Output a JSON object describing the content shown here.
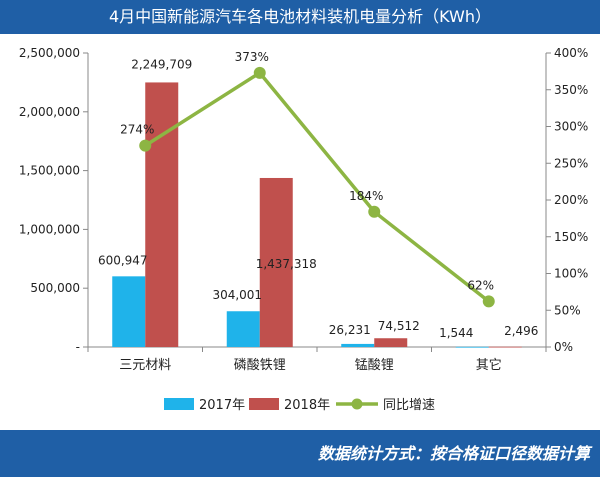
{
  "header": {
    "title": "4月中国新能源汽车各电池材料装机电量分析（KWh）"
  },
  "footer": {
    "note": "数据统计方式：按合格证口径数据计算"
  },
  "colors": {
    "s2017": "#1fb3ea",
    "s2018": "#c0504d",
    "yoy": "#8db543",
    "frame": "#1f5fa6"
  },
  "chart_data": {
    "type": "bar",
    "categories": [
      "三元材料",
      "磷酸铁锂",
      "锰酸锂",
      "其它"
    ],
    "series": [
      {
        "name": "2017年",
        "type": "bar",
        "axis": "left",
        "values": [
          600947,
          304001,
          26231,
          1544
        ],
        "labels": [
          "600,947",
          "304,001",
          "26,231",
          "1,544"
        ]
      },
      {
        "name": "2018年",
        "type": "bar",
        "axis": "left",
        "values": [
          2249709,
          1437318,
          74512,
          2496
        ],
        "labels": [
          "2,249,709",
          "1,437,318",
          "74,512",
          "2,496"
        ]
      },
      {
        "name": "同比增速",
        "type": "line",
        "axis": "right",
        "values": [
          274,
          373,
          184,
          62
        ],
        "labels": [
          "274%",
          "373%",
          "184%",
          "62%"
        ]
      }
    ],
    "y_left": {
      "min": 0,
      "max": 2500000,
      "ticks": [
        0,
        500000,
        1000000,
        1500000,
        2000000,
        2500000
      ],
      "tick_labels": [
        "-",
        "500,000",
        "1,000,000",
        "1,500,000",
        "2,000,000",
        "2,500,000"
      ]
    },
    "y_right": {
      "min": 0,
      "max": 400,
      "ticks": [
        0,
        50,
        100,
        150,
        200,
        250,
        300,
        350,
        400
      ],
      "tick_labels": [
        "0%",
        "50%",
        "100%",
        "150%",
        "200%",
        "250%",
        "300%",
        "350%",
        "400%"
      ]
    },
    "grid": false,
    "legend_position": "bottom"
  }
}
